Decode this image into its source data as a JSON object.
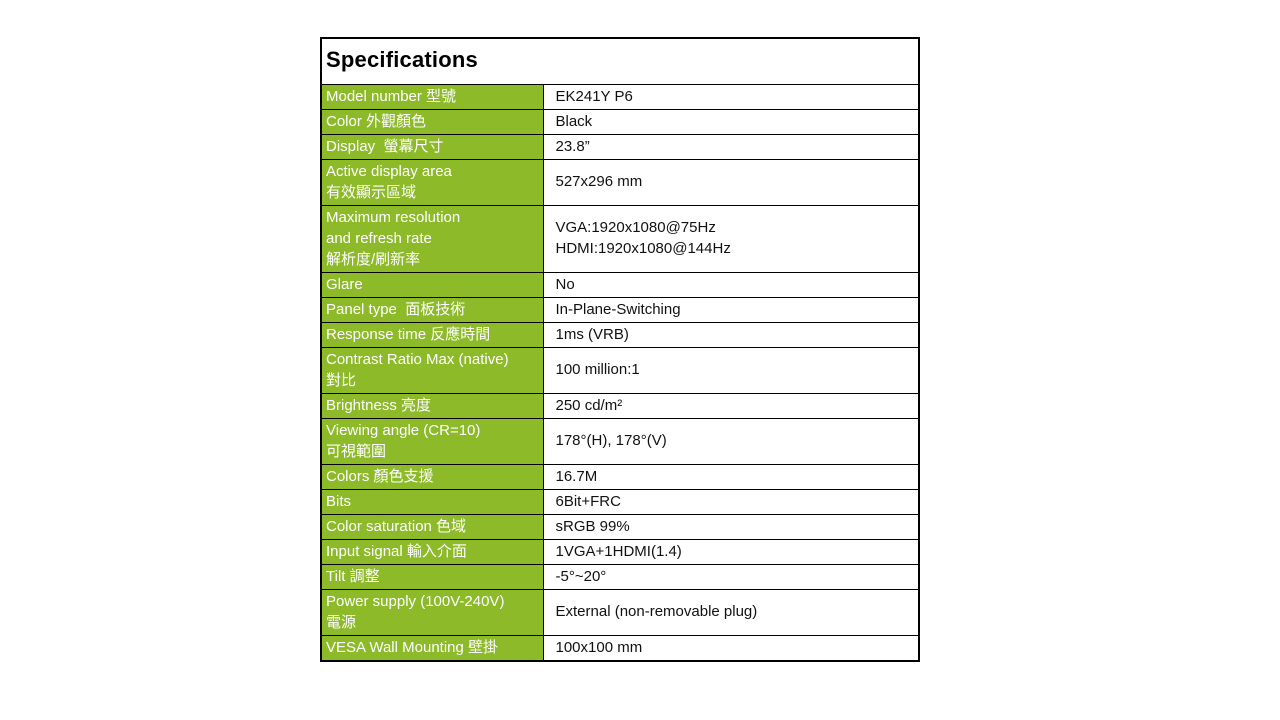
{
  "title": "Specifications",
  "colors": {
    "label_bg": "#8cba28",
    "label_text": "#ffffff",
    "border": "#000000",
    "value_text": "#111111",
    "title_text": "#000000"
  },
  "rows": [
    {
      "label": "Model number 型號",
      "value": "EK241Y P6"
    },
    {
      "label": "Color 外觀顏色",
      "value": "Black"
    },
    {
      "label": "Display  螢幕尺寸",
      "value": "23.8”"
    },
    {
      "label": "Active display area\n有效顯示區域",
      "value": "527x296 mm"
    },
    {
      "label": "Maximum resolution\nand refresh rate\n解析度/刷新率",
      "value": "VGA:1920x1080@75Hz\nHDMI:1920x1080@144Hz"
    },
    {
      "label": "Glare",
      "value": "No"
    },
    {
      "label": "Panel type  面板技術",
      "value": "In-Plane-Switching"
    },
    {
      "label": "Response time 反應時間",
      "value": "1ms (VRB)"
    },
    {
      "label": "Contrast Ratio Max (native)\n對比",
      "value": "100 million:1"
    },
    {
      "label": "Brightness 亮度",
      "value": "250 cd/m²"
    },
    {
      "label": "Viewing angle (CR=10)\n可視範圍",
      "value": "178°(H), 178°(V)"
    },
    {
      "label": "Colors 顏色支援",
      "value": "16.7M"
    },
    {
      "label": "Bits",
      "value": "6Bit+FRC"
    },
    {
      "label": "Color saturation 色域",
      "value": "sRGB 99%"
    },
    {
      "label": "Input signal 輸入介面",
      "value": "1VGA+1HDMI(1.4)"
    },
    {
      "label": "Tilt 調整",
      "value": "-5°~20°"
    },
    {
      "label": "Power supply (100V-240V)\n電源",
      "value": "External (non-removable plug)"
    },
    {
      "label": "VESA Wall Mounting 壁掛",
      "value": "100x100 mm"
    }
  ]
}
